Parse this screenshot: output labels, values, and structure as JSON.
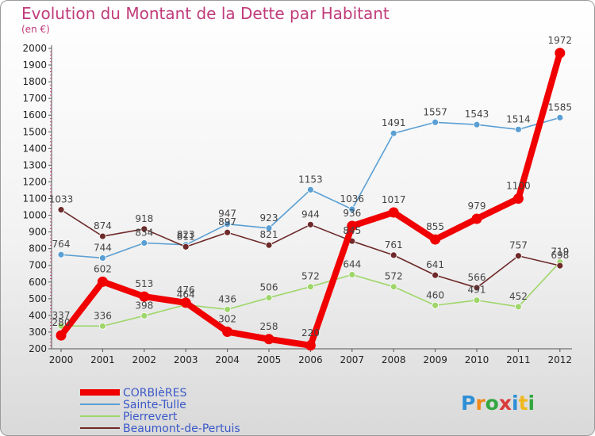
{
  "title": "Evolution du Montant de la Dette par Habitant",
  "unit_label": "(en €)",
  "logo": {
    "letters": [
      "P",
      "r",
      "o",
      "x",
      "i",
      "t",
      "i"
    ],
    "colors": [
      "#2e8fd6",
      "#f08a1c",
      "#34a640",
      "#d93a3a",
      "#2e8fd6",
      "#f0b81c",
      "#34a640"
    ]
  },
  "chart_data": {
    "type": "line",
    "x": [
      "2000",
      "2001",
      "2002",
      "2003",
      "2004",
      "2005",
      "2006",
      "2007",
      "2008",
      "2009",
      "2010",
      "2011",
      "2012"
    ],
    "ylim": [
      200,
      2000
    ],
    "yticks": [
      200,
      300,
      400,
      500,
      600,
      700,
      800,
      900,
      1000,
      1100,
      1200,
      1300,
      1400,
      1500,
      1600,
      1700,
      1800,
      1900,
      2000
    ],
    "grid": false,
    "legend_position": "bottom-left",
    "series": [
      {
        "name": "Sainte-Tulle",
        "color": "#5a9fd4",
        "values": [
          764,
          744,
          834,
          823,
          947,
          923,
          1153,
          1036,
          1491,
          1557,
          1543,
          1514,
          1585
        ]
      },
      {
        "name": "Pierrevert",
        "color": "#9fd66a",
        "values": [
          337,
          336,
          398,
          464,
          436,
          506,
          572,
          644,
          572,
          460,
          491,
          452,
          719
        ]
      },
      {
        "name": "Beaumont-de-Pertuis",
        "color": "#6e2a2a",
        "values": [
          1033,
          874,
          918,
          811,
          897,
          821,
          944,
          845,
          761,
          641,
          566,
          757,
          698
        ]
      },
      {
        "name": "CORBIèRES",
        "color": "#f00000",
        "values": [
          280,
          602,
          513,
          476,
          302,
          258,
          220,
          936,
          1017,
          855,
          979,
          1100,
          1972
        ]
      }
    ]
  }
}
